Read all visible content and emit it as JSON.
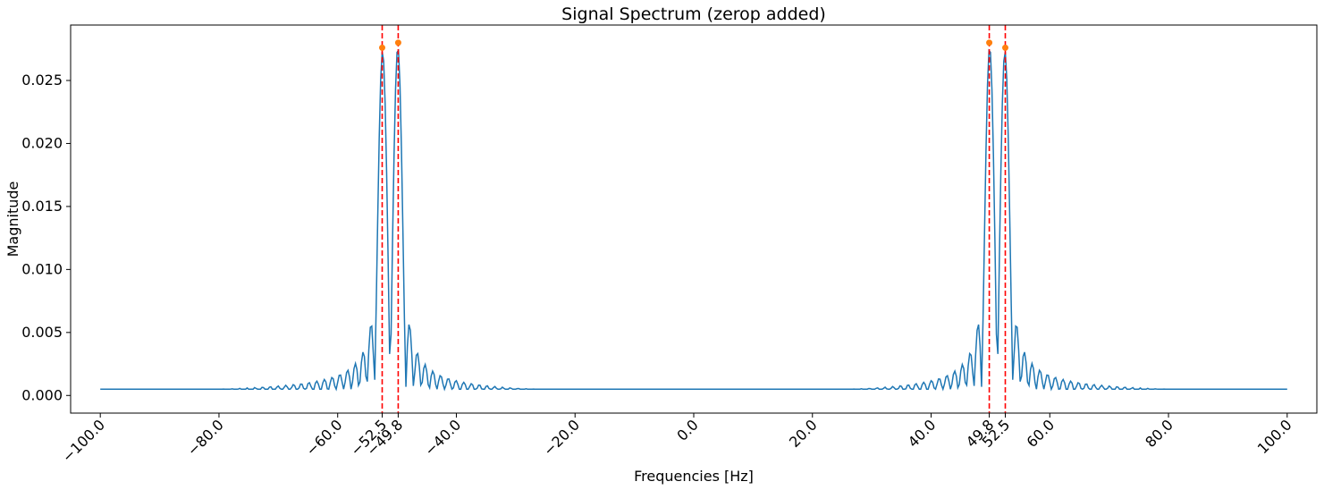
{
  "chart_data": {
    "type": "line",
    "title": "Signal Spectrum (zerop added)",
    "xlabel": "Frequencies [Hz]",
    "ylabel": "Magnitude",
    "xlim": [
      -105,
      105
    ],
    "ylim": [
      -0.0014,
      0.0294
    ],
    "x_ticks": [
      -100,
      -80,
      -60,
      -52.5,
      -49.8,
      -40,
      -20,
      0,
      20,
      40,
      49.8,
      52.5,
      60,
      80,
      100
    ],
    "x_tick_labels": [
      "−100.0",
      "−80.0",
      "−60.0",
      "−52.5",
      "−49.8",
      "−40.0",
      "−20.0",
      "0.0",
      "20.0",
      "40.0",
      "49.8",
      "52.5",
      "60.0",
      "80.0",
      "100.0"
    ],
    "y_ticks": [
      0,
      0.005,
      0.01,
      0.015,
      0.02,
      0.025
    ],
    "y_tick_labels": [
      "0.000",
      "0.005",
      "0.010",
      "0.015",
      "0.020",
      "0.025"
    ],
    "grid": false,
    "series": [
      {
        "color": "#1f77b4",
        "sampling": "x from -100 to 100 Hz, step 0.25",
        "components": [
          {
            "freq": -52.5,
            "amp": 0.0276
          },
          {
            "freq": -49.8,
            "amp": 0.028
          },
          {
            "freq": 49.8,
            "amp": 0.028
          },
          {
            "freq": 52.5,
            "amp": 0.0276
          }
        ],
        "mainlobe_half_width_hz": 1.3,
        "baseline": 0.0005
      }
    ],
    "peaks": [
      {
        "x": -52.5,
        "y": 0.0276
      },
      {
        "x": -49.8,
        "y": 0.028
      },
      {
        "x": 49.8,
        "y": 0.028
      },
      {
        "x": 52.5,
        "y": 0.0276
      }
    ],
    "peak_color": "#ff7f0e",
    "vlines": [
      -52.5,
      -49.8,
      49.8,
      52.5
    ],
    "vline_color": "#ff0000",
    "vline_style": "dashed"
  }
}
